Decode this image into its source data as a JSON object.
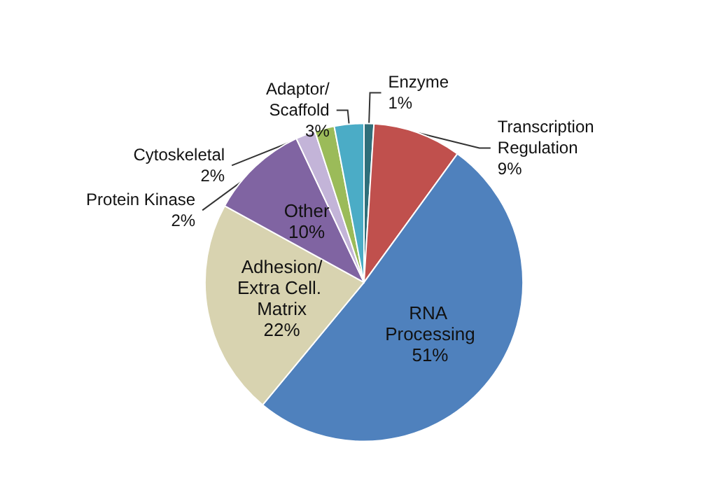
{
  "chart_data": {
    "type": "pie",
    "categories": [
      "Enzyme",
      "Transcription Regulation",
      "RNA Processing",
      "Adhesion/Extra Cell. Matrix",
      "Other",
      "Protein Kinase",
      "Cytoskeletal",
      "Adaptor/Scaffold"
    ],
    "values": [
      1,
      9,
      51,
      22,
      10,
      2,
      2,
      3
    ],
    "colors": [
      "#2f6f7a",
      "#c0504d",
      "#4f81bd",
      "#d8d3b0",
      "#8064a2",
      "#c3b4d8",
      "#9bbb59",
      "#4bacc6"
    ],
    "value_labels": [
      "1%",
      "9%",
      "51%",
      "22%",
      "10%",
      "2%",
      "2%",
      "3%"
    ],
    "legend": false
  }
}
